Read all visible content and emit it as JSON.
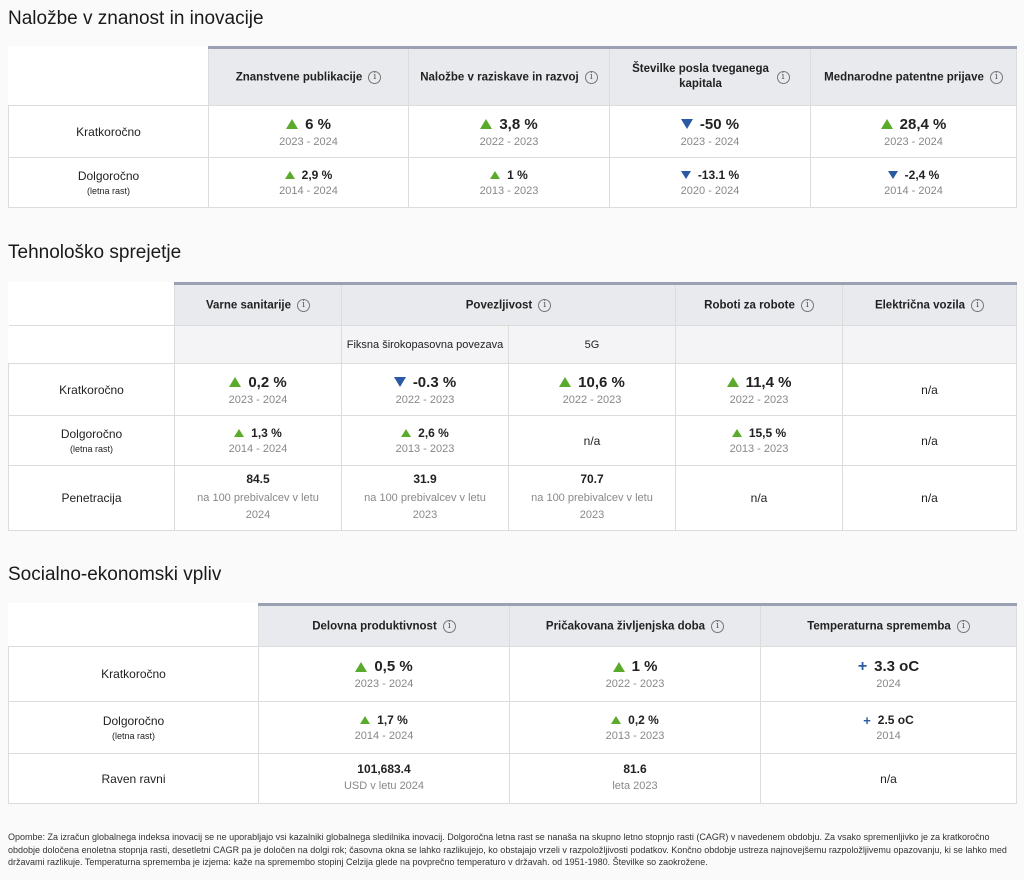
{
  "s1": {
    "title": "Naložbe v znanost in inovacije",
    "cols": [
      "Znanstvene publikacije",
      "Naložbe v raziskave in razvoj",
      "Številke posla tveganega kapitala",
      "Mednarodne patentne prijave"
    ],
    "row_short": "Kratkoročno",
    "row_long": "Dolgoročno",
    "row_long_sub": "(letna rast)",
    "short": [
      {
        "value": "6 %",
        "period": "2023 - 2024",
        "dir": "up"
      },
      {
        "value": "3,8 %",
        "period": "2022 - 2023",
        "dir": "up"
      },
      {
        "value": "-50 %",
        "period": "2023 - 2024",
        "dir": "down"
      },
      {
        "value": "28,4 %",
        "period": "2023 - 2024",
        "dir": "up"
      }
    ],
    "long": [
      {
        "value": "2,9 %",
        "period": "2014 - 2024",
        "dir": "up"
      },
      {
        "value": "1 %",
        "period": "2013 - 2023",
        "dir": "up"
      },
      {
        "value": "-13.1 %",
        "period": "2020 - 2024",
        "dir": "down"
      },
      {
        "value": "-2,4 %",
        "period": "2014 - 2024",
        "dir": "down"
      }
    ]
  },
  "s2": {
    "title": "Tehnološko sprejetje",
    "cols": [
      "Varne sanitarije",
      "Povezljivost",
      "Roboti za robote",
      "Električna vozila"
    ],
    "subcols": [
      "Fiksna širokopasovna povezava",
      "5G"
    ],
    "row_short": "Kratkoročno",
    "row_long": "Dolgoročno",
    "row_long_sub": "(letna rast)",
    "row_pen": "Penetracija",
    "na": "n/a",
    "short": [
      {
        "value": "0,2 %",
        "period": "2023 - 2024",
        "dir": "up"
      },
      {
        "value": "-0.3 %",
        "period": "2022 - 2023",
        "dir": "down"
      },
      {
        "value": "10,6 %",
        "period": "2022 - 2023",
        "dir": "up"
      },
      {
        "value": "11,4 %",
        "period": "2022 - 2023",
        "dir": "up"
      }
    ],
    "long": [
      {
        "value": "1,3 %",
        "period": "2014 - 2024",
        "dir": "up"
      },
      {
        "value": "2,6 %",
        "period": "2013 - 2023",
        "dir": "up"
      },
      {
        "value": "15,5 %",
        "period": "2013 - 2023",
        "dir": "up"
      }
    ],
    "pen": [
      {
        "value": "84.5",
        "unit": "na 100 prebivalcev v letu 2024"
      },
      {
        "value": "31.9",
        "unit": "na 100 prebivalcev v letu 2023"
      },
      {
        "value": "70.7",
        "unit": "na 100 prebivalcev v letu 2023"
      }
    ]
  },
  "s3": {
    "title": "Socialno-ekonomski vpliv",
    "cols": [
      "Delovna produktivnost",
      "Pričakovana življenjska doba",
      "Temperaturna sprememba"
    ],
    "row_short": "Kratkoročno",
    "row_long": "Dolgoročno",
    "row_long_sub": "(letna rast)",
    "row_level": "Raven ravni",
    "na": "n/a",
    "short": [
      {
        "value": "0,5 %",
        "period": "2023 - 2024",
        "dir": "up"
      },
      {
        "value": "1 %",
        "period": "2022 - 2023",
        "dir": "up"
      },
      {
        "value": "3.3 oC",
        "period": "2024",
        "dir": "plus"
      }
    ],
    "long": [
      {
        "value": "1,7 %",
        "period": "2014 - 2024",
        "dir": "up"
      },
      {
        "value": "0,2 %",
        "period": "2013 - 2023",
        "dir": "up"
      },
      {
        "value": "2.5 oC",
        "period": "2014",
        "dir": "plus"
      }
    ],
    "level": [
      {
        "value": "101,683.4",
        "unit": "USD v letu 2024"
      },
      {
        "value": "81.6",
        "unit": "leta 2023"
      }
    ]
  },
  "info_glyph": "i",
  "colors": {
    "up": "#5aab2c",
    "down": "#2b5aa5",
    "header_border": "#9ca0b3"
  },
  "footnote": "Opombe: Za izračun globalnega indeksa inovacij se ne uporabljajo vsi kazalniki globalnega sledilnika inovacij. Dolgoročna letna rast se nanaša na skupno letno stopnjo rasti (CAGR) v navedenem obdobju. Za vsako spremenljivko je za kratkoročno obdobje določena enoletna stopnja rasti, desetletni CAGR pa je določen na dolgi rok; časovna okna se lahko razlikujejo, ko obstajajo vrzeli v razpoložljivosti podatkov. Končno obdobje ustreza najnovejšemu razpoložljivemu opazovanju, ki se lahko med državami razlikuje. Temperaturna sprememba je izjema: kaže na spremembo stopinj Celzija glede na povprečno temperaturo v državah. od 1951-1980. Številke so zaokrožene."
}
